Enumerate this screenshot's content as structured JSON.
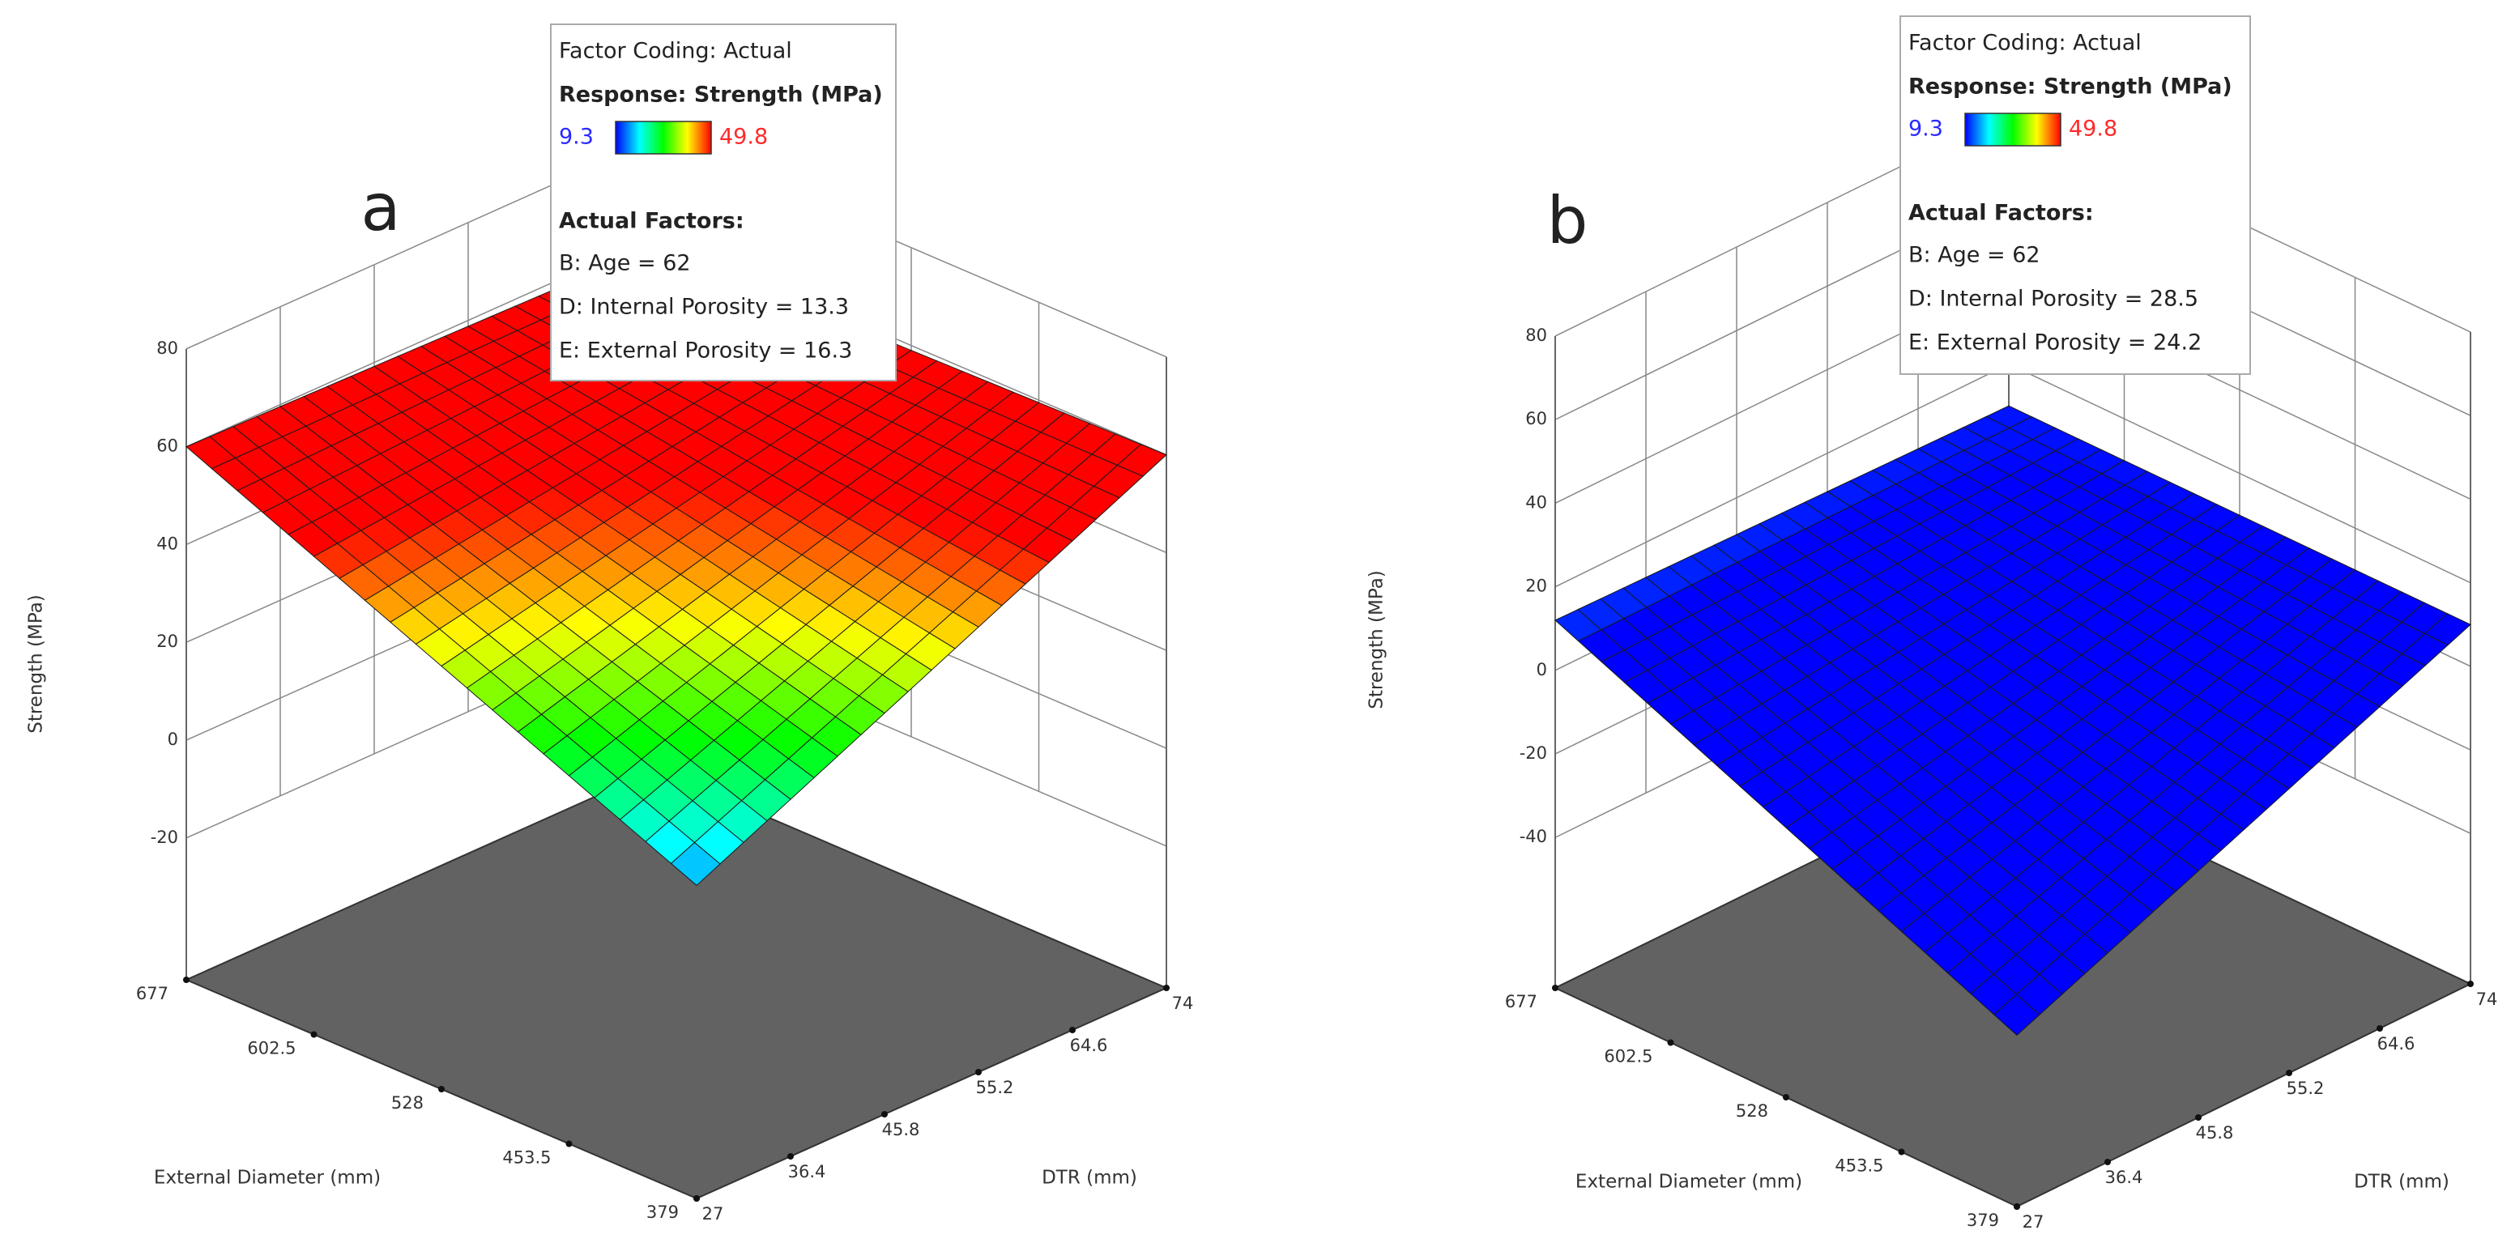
{
  "chart_data": [
    {
      "type": "surface",
      "panel_label": "a",
      "legend": {
        "factor_coding": "Factor Coding: Actual",
        "response": "Response: Strength (MPa)",
        "actual_factors": "Actual Factors:",
        "factors": [
          "B: Age = 62",
          "D: Internal Porosity = 13.3",
          "E: External Porosity = 16.3"
        ]
      },
      "colorbar": {
        "low": 9.3,
        "high": 49.8
      },
      "colormap": [
        "#0000ff",
        "#00ffff",
        "#00ff00",
        "#ffff00",
        "#ff0000"
      ],
      "xlabel": "External Diameter (mm)",
      "ylabel": "DTR (mm)",
      "zlabel": "Strength (MPa)",
      "xlim": [
        379,
        677
      ],
      "xticks": [
        379,
        453.5,
        528,
        602.5,
        677
      ],
      "ylim": [
        27,
        74
      ],
      "yticks": [
        27,
        36.4,
        45.8,
        55.2,
        64.6,
        74
      ],
      "zlim": [
        -20,
        80
      ],
      "zticks": [
        -20,
        0,
        20,
        40,
        60,
        80
      ],
      "x": [
        379,
        677
      ],
      "y": [
        27,
        74
      ],
      "z": [
        [
          15,
          60
        ],
        [
          60,
          58
        ]
      ]
    },
    {
      "type": "surface",
      "panel_label": "b",
      "legend": {
        "factor_coding": "Factor Coding: Actual",
        "response": "Response: Strength (MPa)",
        "actual_factors": "Actual Factors:",
        "factors": [
          "B: Age = 62",
          "D: Internal Porosity = 28.5",
          "E: External Porosity = 24.2"
        ]
      },
      "colorbar": {
        "low": 9.3,
        "high": 49.8
      },
      "colormap": [
        "#0000ff",
        "#00ffff",
        "#00ff00",
        "#ffff00",
        "#ff0000"
      ],
      "xlabel": "External Diameter (mm)",
      "ylabel": "DTR (mm)",
      "zlabel": "Strength (MPa)",
      "xlim": [
        379,
        677
      ],
      "xticks": [
        379,
        453.5,
        528,
        602.5,
        677
      ],
      "ylim": [
        27,
        74
      ],
      "yticks": [
        27,
        36.4,
        45.8,
        55.2,
        64.6,
        74
      ],
      "zlim": [
        -40,
        80
      ],
      "zticks": [
        -40,
        -20,
        0,
        20,
        40,
        60,
        80
      ],
      "x": [
        379,
        677
      ],
      "y": [
        27,
        74
      ],
      "z": [
        [
          -35,
          10
        ],
        [
          12,
          10
        ]
      ]
    }
  ]
}
